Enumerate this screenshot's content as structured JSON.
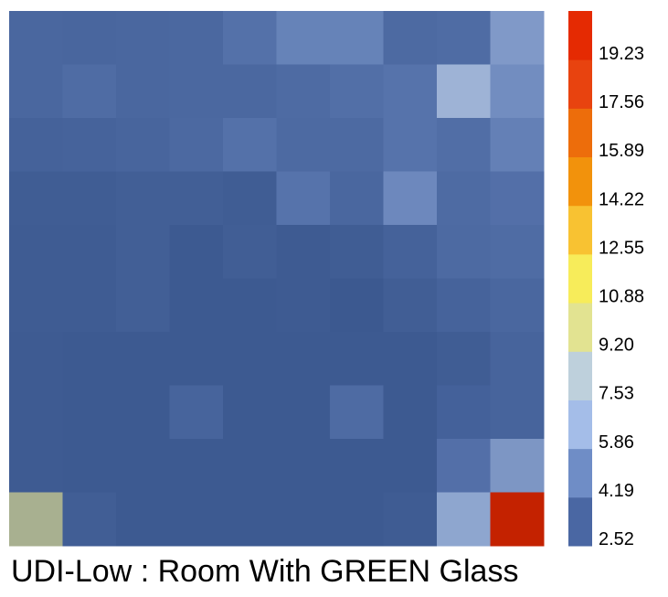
{
  "chart_data": {
    "type": "heatmap",
    "title": "UDI-Low : Room With GREEN Glass",
    "rows": 10,
    "cols": 10,
    "cells": [
      [
        "#4a679f",
        "#49669e",
        "#4a679f",
        "#4b68a0",
        "#5471a9",
        "#6683b8",
        "#6683b8",
        "#4d6aa2",
        "#4f6ca4",
        "#8099c8"
      ],
      [
        "#4a679f",
        "#4f6ca4",
        "#4a679f",
        "#4b68a0",
        "#4b68a0",
        "#4e6ba3",
        "#526fa7",
        "#5673ab",
        "#9eb3d6",
        "#728dc0"
      ],
      [
        "#45629a",
        "#46639b",
        "#48659d",
        "#4c69a1",
        "#5471a9",
        "#4d6aa2",
        "#4d6aa2",
        "#5673ab",
        "#516ea6",
        "#6480b6"
      ],
      [
        "#405d94",
        "#405d94",
        "#425f96",
        "#425f96",
        "#405d94",
        "#5673ab",
        "#4a679f",
        "#6d88bd",
        "#4e6ba3",
        "#536fa8"
      ],
      [
        "#3f5c93",
        "#3f5c93",
        "#425f96",
        "#3d5a91",
        "#415e95",
        "#3e5b92",
        "#405d94",
        "#45629a",
        "#4d6aa2",
        "#4f6ca4"
      ],
      [
        "#3f5c93",
        "#3f5c93",
        "#425f96",
        "#3d5a91",
        "#3d5a91",
        "#3e5b92",
        "#3c5990",
        "#415e95",
        "#46639b",
        "#4a679f"
      ],
      [
        "#3e5b92",
        "#3d5a91",
        "#3d5a91",
        "#3d5a91",
        "#3d5a91",
        "#3d5a91",
        "#3d5a91",
        "#3d5a91",
        "#405d94",
        "#47649c"
      ],
      [
        "#3e5b92",
        "#3d5a91",
        "#3d5a91",
        "#47649c",
        "#3d5a91",
        "#3d5a91",
        "#4e6ba3",
        "#3d5a91",
        "#44619a",
        "#47649c"
      ],
      [
        "#3e5b92",
        "#3d5a91",
        "#3d5a91",
        "#3d5a91",
        "#3d5a91",
        "#3d5a91",
        "#3d5a91",
        "#3d5a91",
        "#536fa8",
        "#7d96c4"
      ],
      [
        "#a8b090",
        "#415e95",
        "#3d5a91",
        "#3d5a91",
        "#3d5a91",
        "#3d5a91",
        "#3d5a91",
        "#3f5c93",
        "#8ea6cf",
        "#c42200"
      ]
    ],
    "colorbar": {
      "min": 2.52,
      "max": 20.9,
      "tick_labels": [
        "19.23",
        "17.56",
        "15.89",
        "14.22",
        "12.55",
        "10.88",
        "9.20",
        "7.53",
        "5.86",
        "4.19",
        "2.52"
      ],
      "colors_bottom_to_top": [
        "#4a67a3",
        "#6f8dc6",
        "#a4bde8",
        "#bed0dc",
        "#e2e391",
        "#f7ec5a",
        "#f8c232",
        "#f2920c",
        "#ed6d0b",
        "#e8430f",
        "#e52a02"
      ]
    }
  }
}
